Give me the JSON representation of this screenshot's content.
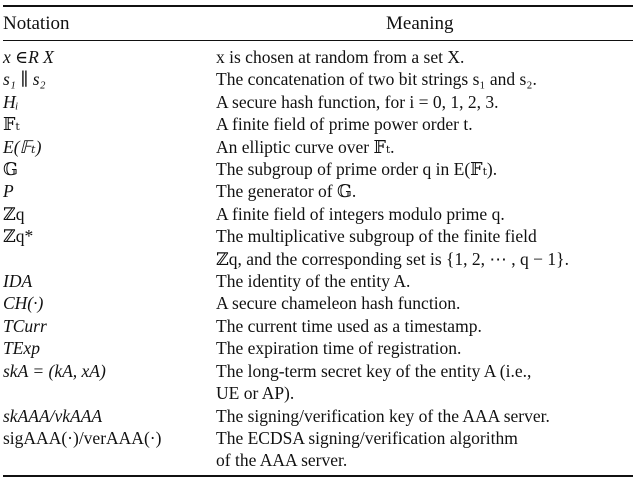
{
  "header": {
    "notation": "Notation",
    "meaning": "Meaning"
  },
  "rows": [
    {
      "symbol": "x ∈R X",
      "meaning": [
        "x is chosen at random from a set X."
      ]
    },
    {
      "symbol": "s₁ ∥ s₂",
      "meaning": [
        "The concatenation of two bit strings s₁ and s₂."
      ]
    },
    {
      "symbol": "Hᵢ",
      "meaning": [
        "A secure hash function, for i = 0, 1, 2, 3."
      ]
    },
    {
      "symbol": "𝔽ₜ",
      "meaning": [
        "A finite field of prime power order t."
      ]
    },
    {
      "symbol": "E(𝔽ₜ)",
      "meaning": [
        "An elliptic curve over 𝔽ₜ."
      ]
    },
    {
      "symbol": "𝔾",
      "meaning": [
        "The subgroup of prime order q in E(𝔽ₜ)."
      ]
    },
    {
      "symbol": "P",
      "meaning": [
        "The generator of 𝔾."
      ]
    },
    {
      "symbol": "ℤq",
      "meaning": [
        "A finite field of integers modulo prime q."
      ]
    },
    {
      "symbol": "ℤq*",
      "meaning": [
        "The multiplicative subgroup of the finite field",
        "ℤq, and the corresponding set is {1, 2, ⋯ , q − 1}."
      ]
    },
    {
      "symbol": "IDA",
      "meaning": [
        "The identity of the entity A."
      ]
    },
    {
      "symbol": "CH(·)",
      "meaning": [
        "A secure chameleon hash function."
      ]
    },
    {
      "symbol": "TCurr",
      "meaning": [
        "The current time used as a timestamp."
      ]
    },
    {
      "symbol": "TExp",
      "meaning": [
        "The expiration time of registration."
      ]
    },
    {
      "symbol": "skA = (kA, xA)",
      "meaning": [
        "The long-term secret key of the entity A (i.e.,",
        "UE or AP)."
      ]
    },
    {
      "symbol": "skAAA/vkAAA",
      "meaning": [
        "The signing/verification key of the AAA server."
      ]
    },
    {
      "symbol": "sigAAA(·)/verAAA(·)",
      "meaning": [
        "The ECDSA signing/verification algorithm",
        "of the AAA server."
      ]
    }
  ]
}
